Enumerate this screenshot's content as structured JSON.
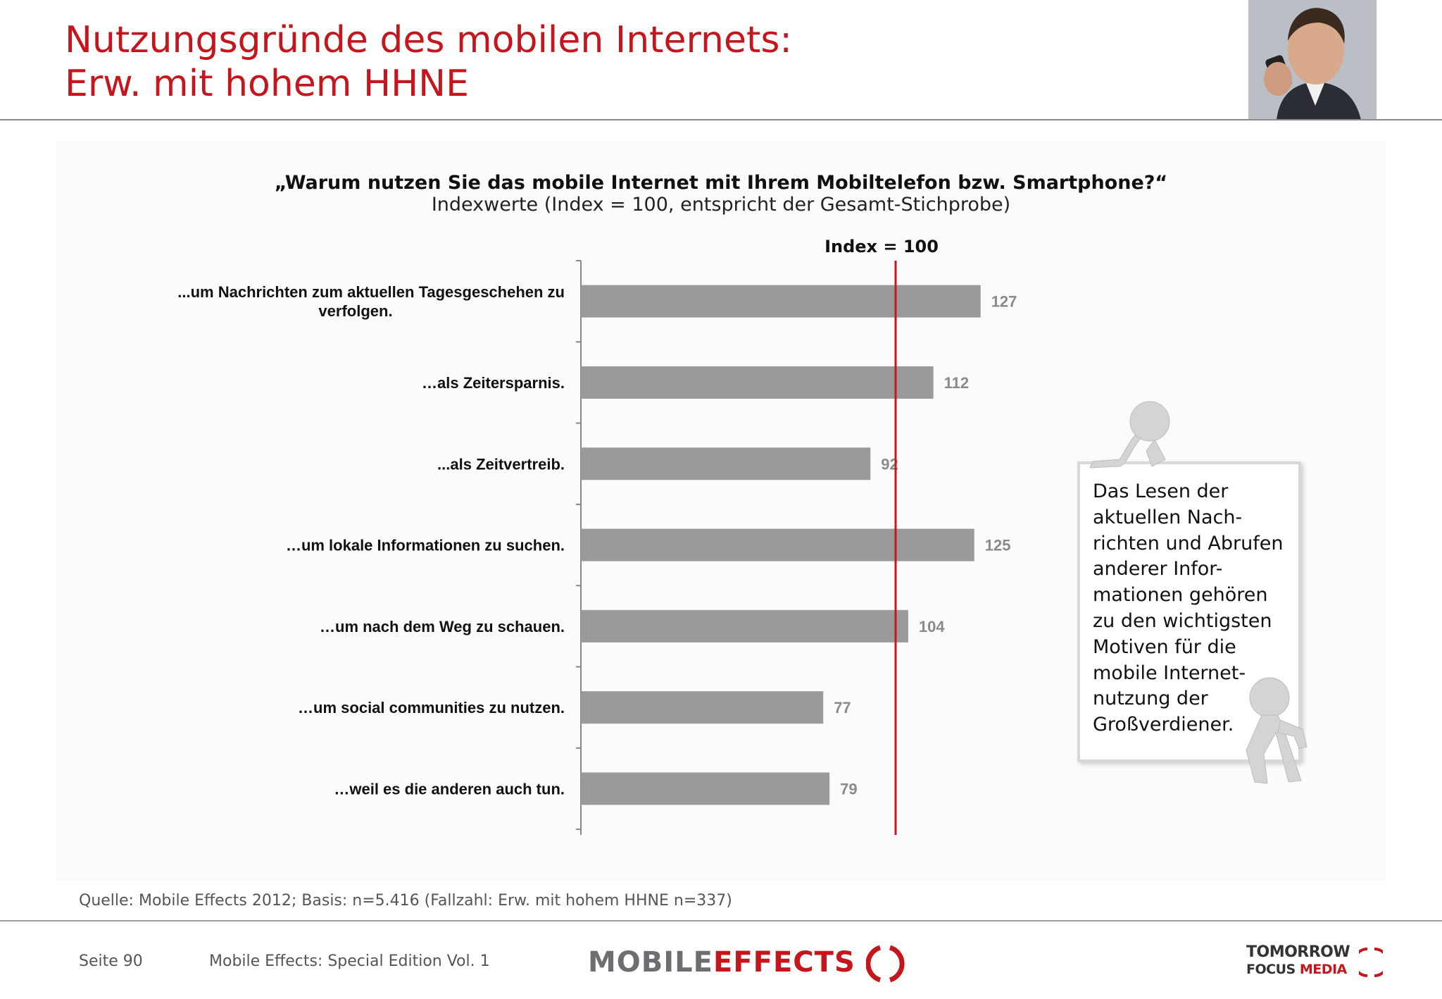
{
  "header": {
    "title_line1": "Nutzungsgründe des mobilen Internets:",
    "title_line2": "Erw. mit hohem HHNE"
  },
  "chart_data": {
    "type": "bar",
    "orientation": "horizontal",
    "title": "„Warum nutzen Sie das mobile Internet mit Ihrem Mobiltelefon bzw. Smartphone?“",
    "subtitle": "Indexwerte (Index = 100, entspricht der Gesamt-Stichprobe)",
    "categories": [
      "...um Nachrichten zum aktuellen Tagesgeschehen zu verfolgen.",
      "…als Zeitersparnis.",
      "...als Zeitvertreib.",
      "…um lokale Informationen zu suchen.",
      "…um nach dem Weg zu schauen.",
      "…um social communities zu nutzen.",
      "…weil es die anderen auch tun."
    ],
    "category_lines": [
      [
        "...um Nachrichten zum aktuellen Tagesgeschehen zu",
        "verfolgen."
      ],
      [
        "…als Zeitersparnis."
      ],
      [
        "...als Zeitvertreib."
      ],
      [
        "…um lokale Informationen zu suchen."
      ],
      [
        "…um nach dem Weg zu schauen."
      ],
      [
        "…um social communities zu nutzen."
      ],
      [
        "…weil es die anderen auch tun."
      ]
    ],
    "values": [
      127,
      112,
      92,
      125,
      104,
      77,
      79
    ],
    "xlim": [
      0,
      150
    ],
    "reference_line": {
      "value": 100,
      "label": "Index = 100",
      "color": "#c4161c"
    },
    "bar_color": "#9a999b",
    "value_label_color": "#8a8a8a",
    "grid": false,
    "legend": "none"
  },
  "callout": {
    "text": "Das Lesen der\naktuellen Nach-\nrichten und Abrufen\nanderer Infor-\nmationen gehören\nzu den wichtigsten\nMotiven für die\nmobile Internet-\nnutzung der\nGroßverdiener."
  },
  "footer": {
    "source": "Quelle: Mobile Effects 2012; Basis: n=5.416 (Fallzahl: Erw. mit hohem HHNE n=337)",
    "page": "Seite 90",
    "edition": "Mobile Effects: Special Edition Vol. 1",
    "logo_mobile_a": "MOBILE",
    "logo_mobile_b": "EFFECTS",
    "logo_tfm_line1": "TOMORROW",
    "logo_tfm_line2a": "FOCUS",
    "logo_tfm_line2b": "MEDIA"
  },
  "colors": {
    "accent": "#c4161c",
    "bar": "#9a999b",
    "text": "#111111"
  },
  "icons": {
    "photo": "man-on-phone-photo",
    "figure": "3d-figure-icon"
  }
}
